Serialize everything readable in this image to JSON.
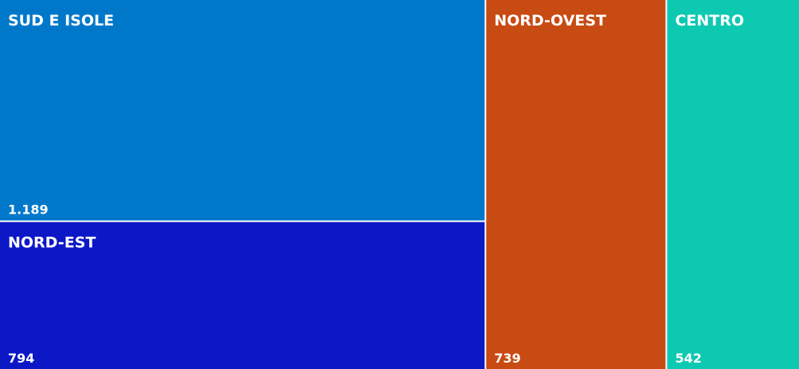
{
  "chart_data": {
    "type": "treemap",
    "categories": [
      "SUD E ISOLE",
      "NORD-EST",
      "NORD-OVEST",
      "CENTRO"
    ],
    "values": [
      1189,
      794,
      739,
      542
    ],
    "value_labels": [
      "1.189",
      "794",
      "739",
      "542"
    ],
    "colors": [
      "#0078ca",
      "#0c18c6",
      "#c84b13",
      "#0ec9b1"
    ]
  }
}
